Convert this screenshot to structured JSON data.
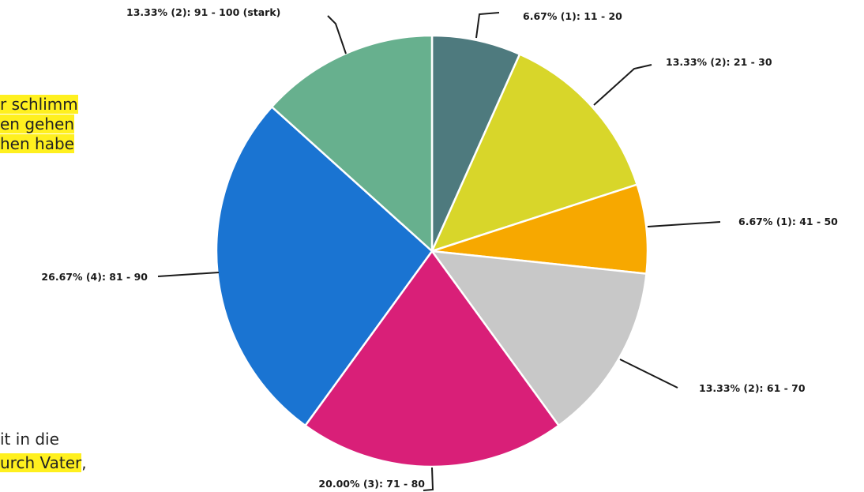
{
  "side_text": {
    "top_lines": [
      "r schlimm",
      "en gehen",
      "hen habe"
    ],
    "bottom_line_1": "it in die",
    "bottom_line_2_highlight": "urch Vater",
    "bottom_line_2_tail": ","
  },
  "chart_data": {
    "type": "pie",
    "title": "",
    "slices": [
      {
        "category": "11 - 20",
        "percent": 6.67,
        "count": 1,
        "color": "#4e7a7e",
        "label": "6.67% (1): 11 - 20"
      },
      {
        "category": "21 - 30",
        "percent": 13.33,
        "count": 2,
        "color": "#d8d62a",
        "label": "13.33% (2): 21 - 30"
      },
      {
        "category": "41 - 50",
        "percent": 6.67,
        "count": 1,
        "color": "#f7a800",
        "label": "6.67% (1): 41 - 50"
      },
      {
        "category": "61 - 70",
        "percent": 13.33,
        "count": 2,
        "color": "#c8c8c8",
        "label": "13.33% (2): 61 - 70"
      },
      {
        "category": "71 - 80",
        "percent": 20.0,
        "count": 3,
        "color": "#d91f78",
        "label": "20.00% (3): 71 - 80"
      },
      {
        "category": "81 - 90",
        "percent": 26.67,
        "count": 4,
        "color": "#1a74d2",
        "label": "26.67% (4): 81 - 90"
      },
      {
        "category": "91 - 100 (stark)",
        "percent": 13.33,
        "count": 2,
        "color": "#67b08e",
        "label": "13.33% (2): 91 - 100 (stark)"
      }
    ]
  }
}
